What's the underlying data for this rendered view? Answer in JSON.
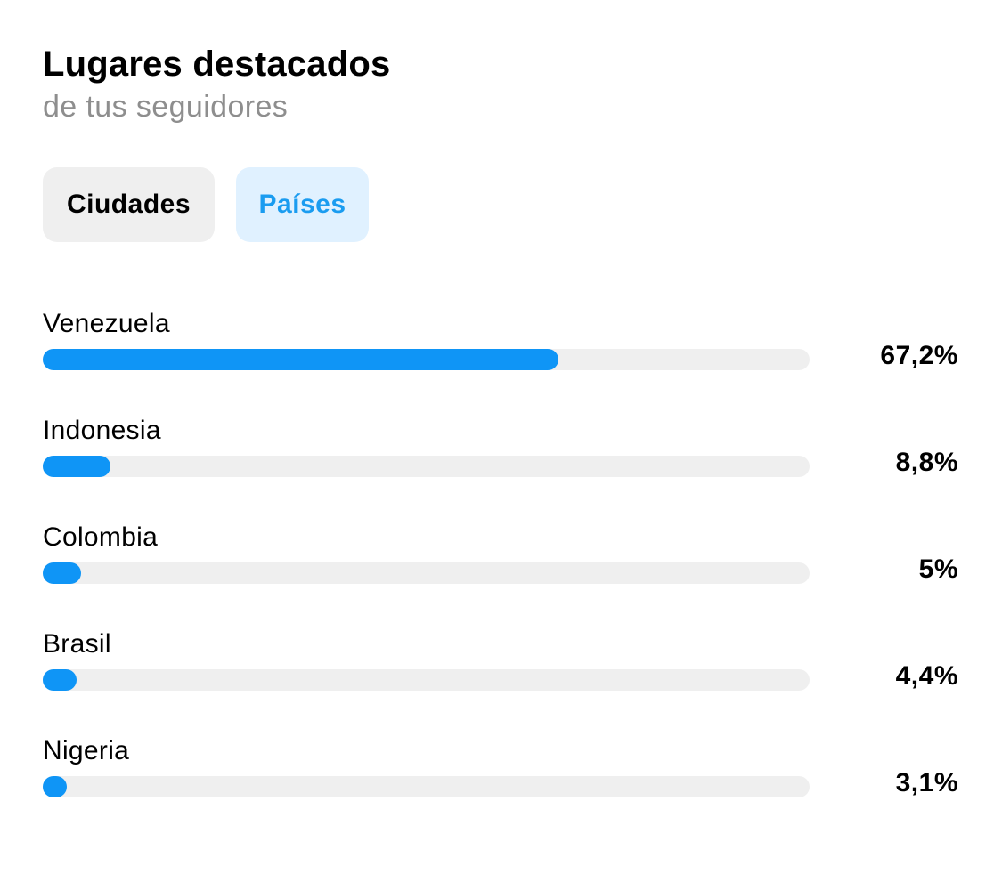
{
  "header": {
    "title": "Lugares destacados",
    "subtitle": "de tus seguidores"
  },
  "tabs": [
    {
      "label": "Ciudades",
      "active": false
    },
    {
      "label": "Países",
      "active": true
    }
  ],
  "colors": {
    "accent": "#0f95f6",
    "active_tab_bg": "#e0f1ff",
    "active_tab_text": "#1a9cf0",
    "track": "#efefef"
  },
  "locations": [
    {
      "name": "Venezuela",
      "value_label": "67,2%",
      "percent": 67.2
    },
    {
      "name": "Indonesia",
      "value_label": "8,8%",
      "percent": 8.8
    },
    {
      "name": "Colombia",
      "value_label": "5%",
      "percent": 5
    },
    {
      "name": "Brasil",
      "value_label": "4,4%",
      "percent": 4.4
    },
    {
      "name": "Nigeria",
      "value_label": "3,1%",
      "percent": 3.1
    }
  ]
}
